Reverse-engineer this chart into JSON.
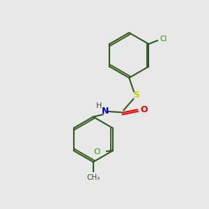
{
  "background_color": "#e8e8e8",
  "bond_color": "#2d5a1b",
  "bond_width": 1.5,
  "atom_colors": {
    "N": "#0000ee",
    "O": "#ee0000",
    "S": "#cccc00",
    "Cl": "#2d8c00",
    "C": "#2d5a1b",
    "me": "#2d5a1b"
  },
  "figsize": [
    3.0,
    3.0
  ],
  "dpi": 100,
  "xlim": [
    0,
    10
  ],
  "ylim": [
    0,
    10
  ]
}
